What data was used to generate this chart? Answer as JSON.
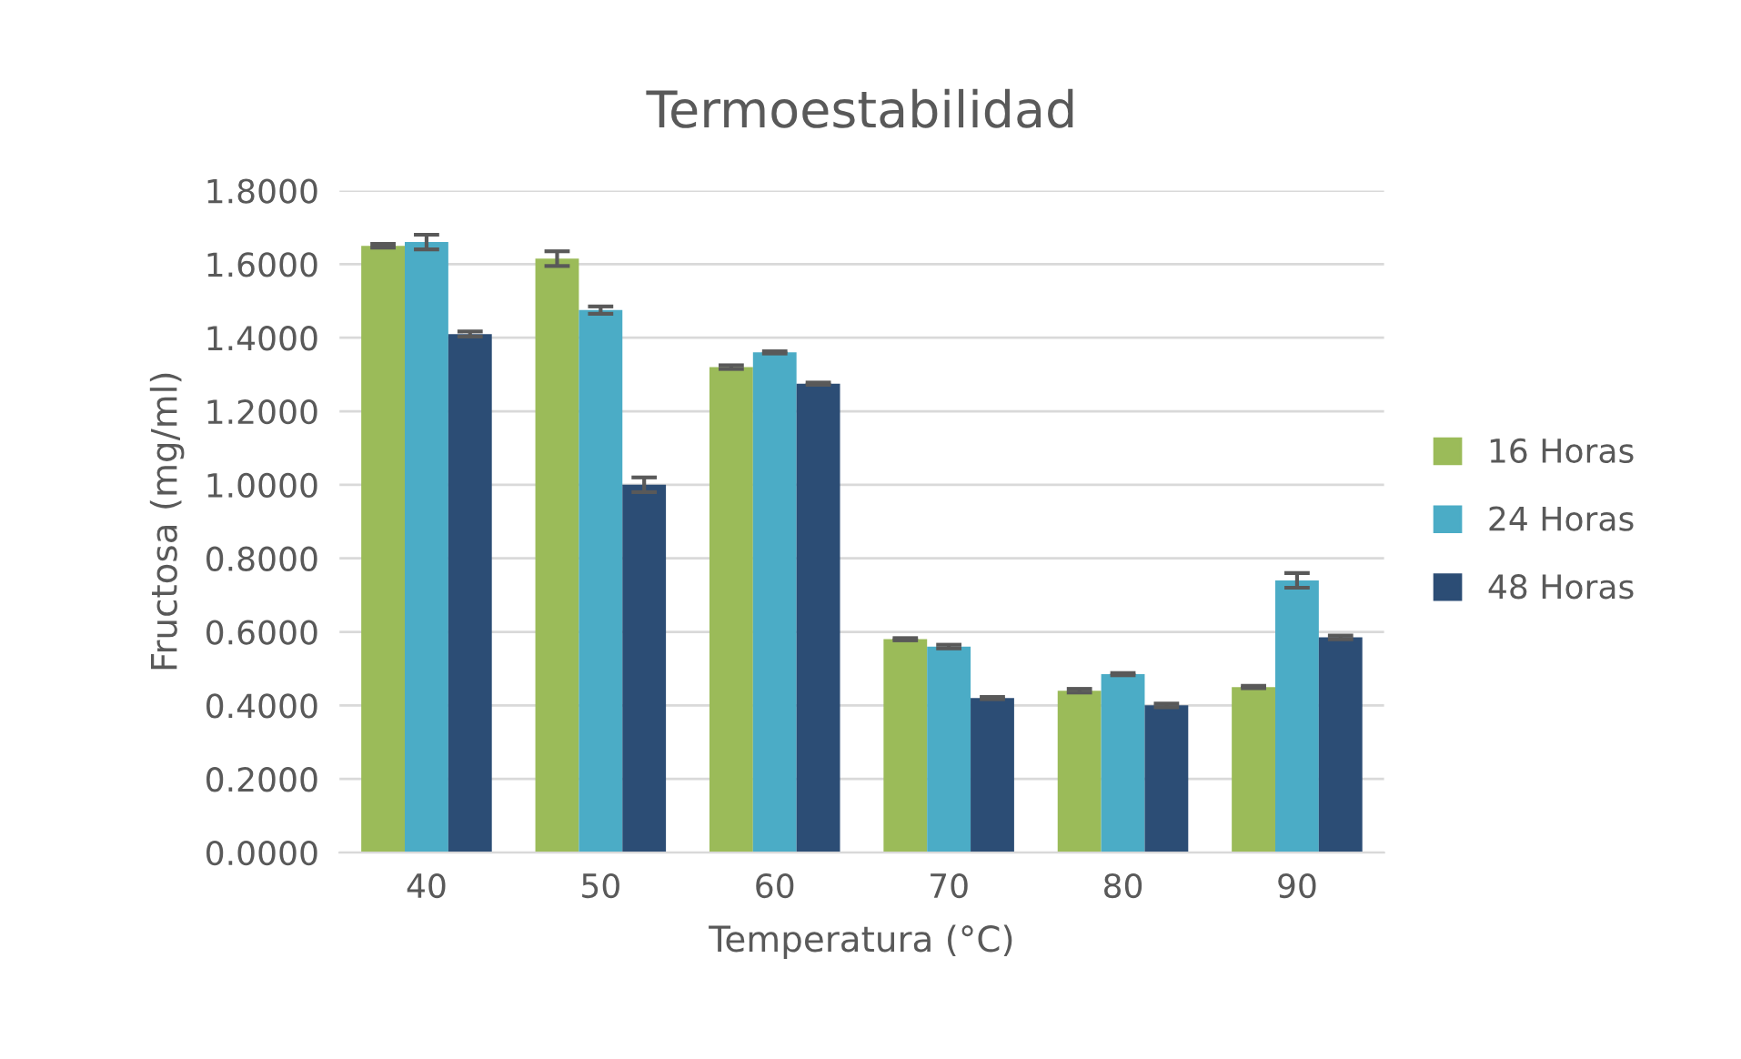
{
  "chart_data": {
    "type": "bar",
    "title": "Termoestabilidad",
    "xlabel": "Temperatura (°C)",
    "ylabel": "Fructosa (mg/ml)",
    "categories": [
      "40",
      "50",
      "60",
      "70",
      "80",
      "90"
    ],
    "series": [
      {
        "name": "16 Horas",
        "color": "#9bbb59",
        "values": [
          1.65,
          1.615,
          1.32,
          0.58,
          0.44,
          0.45
        ],
        "errors": [
          0.005,
          0.02,
          0.005,
          0.003,
          0.005,
          0.003
        ]
      },
      {
        "name": "24 Horas",
        "color": "#4bacc6",
        "values": [
          1.66,
          1.475,
          1.36,
          0.56,
          0.485,
          0.74
        ],
        "errors": [
          0.02,
          0.01,
          0.003,
          0.005,
          0.003,
          0.02
        ]
      },
      {
        "name": "48 Horas",
        "color": "#2c4d75",
        "values": [
          1.41,
          1.0,
          1.275,
          0.42,
          0.4,
          0.585
        ],
        "errors": [
          0.007,
          0.02,
          0.003,
          0.003,
          0.005,
          0.005
        ]
      }
    ],
    "ylim": [
      0,
      1.8
    ],
    "yticks": [
      {
        "value": 0,
        "label": "0.0000"
      },
      {
        "value": 0.2,
        "label": "0.2000"
      },
      {
        "value": 0.4,
        "label": "0.4000"
      },
      {
        "value": 0.6,
        "label": "0.6000"
      },
      {
        "value": 0.8,
        "label": "0.8000"
      },
      {
        "value": 1.0,
        "label": "1.0000"
      },
      {
        "value": 1.2,
        "label": "1.2000"
      },
      {
        "value": 1.4,
        "label": "1.4000"
      },
      {
        "value": 1.6,
        "label": "1.6000"
      },
      {
        "value": 1.8,
        "label": "1.8000"
      }
    ],
    "grid": "y",
    "legend": "right"
  }
}
